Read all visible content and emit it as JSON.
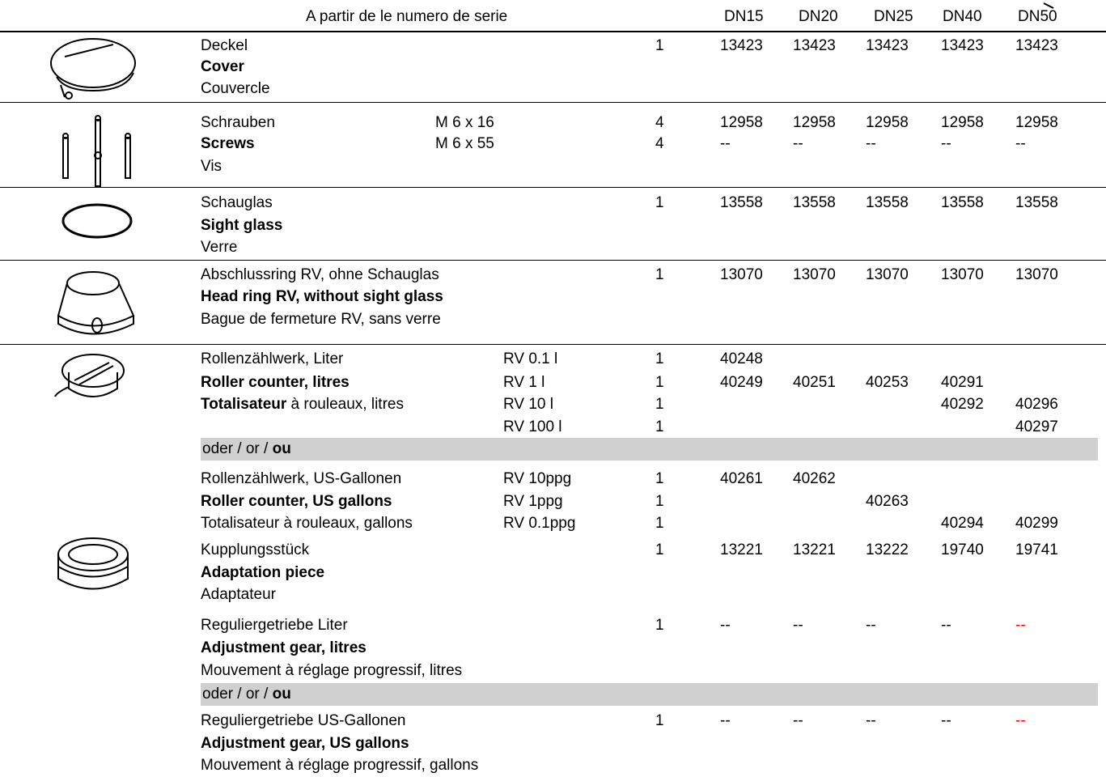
{
  "header": {
    "serial_label": "A partir de le numero de serie",
    "columns": [
      "DN15",
      "DN20",
      "DN25",
      "DN40",
      "DN50"
    ]
  },
  "sections": [
    {
      "lines": [
        {
          "desc": "Deckel",
          "qty": "1",
          "numbers": [
            "13423",
            "13423",
            "13423",
            "13423",
            "13423"
          ]
        },
        {
          "desc": "Cover",
          "bold": true
        },
        {
          "desc": "Couvercle"
        }
      ]
    },
    {
      "lines": [
        {
          "desc": "Schrauben",
          "spec": "M 6 x 16",
          "qty": "4",
          "numbers": [
            "12958",
            "12958",
            "12958",
            "12958",
            "12958"
          ]
        },
        {
          "desc": "Screws",
          "bold": true,
          "spec": "M 6 x 55",
          "qty": "4",
          "numbers": [
            "--",
            "--",
            "--",
            "--",
            "--"
          ]
        },
        {
          "desc": "Vis"
        }
      ]
    },
    {
      "lines": [
        {
          "desc": "Schauglas",
          "qty": "1",
          "numbers": [
            "13558",
            "13558",
            "13558",
            "13558",
            "13558"
          ]
        },
        {
          "desc": "Sight glass",
          "bold": true
        },
        {
          "desc": "Verre"
        }
      ]
    },
    {
      "lines": [
        {
          "desc": "Abschlussring RV, ohne Schauglas",
          "qty": "1",
          "numbers": [
            "13070",
            "13070",
            "13070",
            "13070",
            "13070"
          ]
        },
        {
          "desc": "Head ring RV, without sight glass",
          "bold": true
        },
        {
          "desc": "Bague de fermeture RV, sans verre"
        }
      ]
    },
    {
      "lines": [
        {
          "desc": "Rollenzählwerk, Liter",
          "spec": "RV 0.1 l",
          "qty": "1",
          "numbers": [
            "40248",
            null,
            null,
            null,
            null
          ]
        },
        {
          "desc": "Roller counter, litres",
          "bold": true,
          "spec": "RV 1 l",
          "qty": "1",
          "numbers": [
            "40249",
            "40251",
            "40253",
            "40291",
            null
          ]
        },
        {
          "desc_bold": "Totalisateur",
          "desc": " à rouleaux, litres",
          "spec": "RV 10 l",
          "qty": "1",
          "numbers": [
            null,
            null,
            null,
            "40292",
            "40296"
          ]
        },
        {
          "spec": "RV 100 l",
          "qty": "1",
          "numbers": [
            null,
            null,
            null,
            null,
            "40297"
          ]
        },
        {
          "alt": "oder / or / ",
          "alt_bold": "ou"
        },
        {
          "desc": "Rollenzählwerk, US-Gallonen",
          "spec": "RV 10ppg",
          "qty": "1",
          "numbers": [
            "40261",
            "40262",
            null,
            null,
            null
          ]
        },
        {
          "desc": "Roller counter, US gallons",
          "bold": true,
          "spec": "RV 1ppg",
          "qty": "1",
          "numbers": [
            null,
            null,
            "40263",
            null,
            null
          ]
        },
        {
          "desc": "Totalisateur à rouleaux, gallons",
          "spec": "RV 0.1ppg",
          "qty": "1",
          "numbers": [
            null,
            null,
            null,
            "40294",
            "40299"
          ]
        },
        {
          "desc": "Kupplungsstück",
          "qty": "1",
          "numbers": [
            "13221",
            "13221",
            "13222",
            "19740",
            "19741"
          ]
        },
        {
          "desc": "Adaptation piece",
          "bold": true
        },
        {
          "desc": "Adaptateur"
        },
        {
          "desc": "Reguliergetriebe Liter",
          "qty": "1",
          "numbers": [
            "--",
            "--",
            "--",
            "--",
            "--"
          ],
          "number_colors": [
            null,
            null,
            null,
            null,
            "#ff0000"
          ]
        },
        {
          "desc": "Adjustment gear, litres",
          "bold": true
        },
        {
          "desc": "Mouvement à réglage progressif, litres"
        },
        {
          "alt": "oder / or / ",
          "alt_bold": "ou"
        },
        {
          "desc": "Reguliergetriebe US-Gallonen",
          "qty": "1",
          "numbers": [
            "--",
            "--",
            "--",
            "--",
            "--"
          ],
          "number_colors": [
            null,
            null,
            null,
            null,
            "#ff0000"
          ]
        },
        {
          "desc": "Adjustment gear, US gallons",
          "bold": true
        },
        {
          "desc": "Mouvement à réglage progressif, gallons"
        }
      ]
    }
  ]
}
